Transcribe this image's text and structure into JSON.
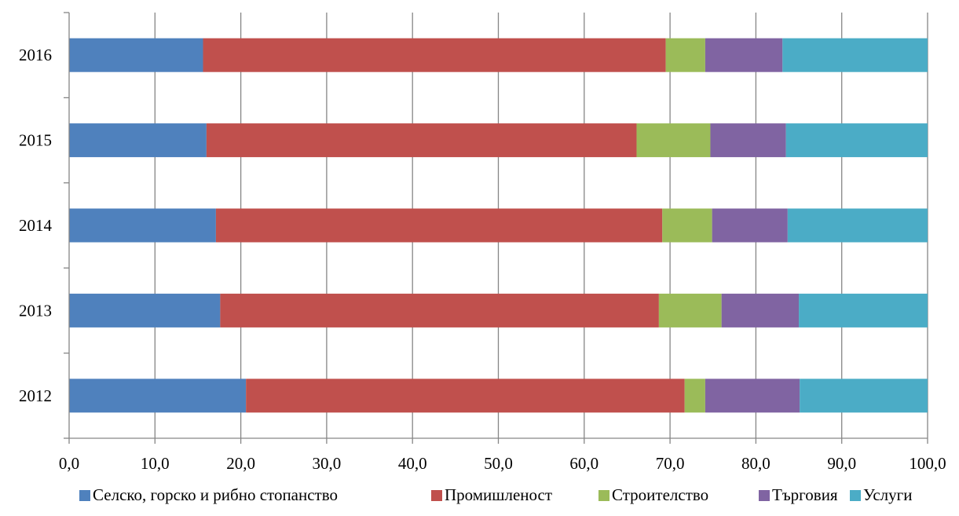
{
  "chart_data": {
    "type": "bar",
    "orientation": "horizontal",
    "stacked": true,
    "categories": [
      "2012",
      "2013",
      "2014",
      "2015",
      "2016"
    ],
    "series": [
      {
        "name": "Селско, горско и рибно стопанство",
        "color": "#4F81BD",
        "values": [
          20.6,
          17.6,
          17.1,
          16.0,
          15.6
        ]
      },
      {
        "name": "Промишленост",
        "color": "#C0504D",
        "values": [
          51.1,
          51.1,
          52.0,
          50.1,
          53.9
        ]
      },
      {
        "name": "Строителство",
        "color": "#9BBB59",
        "values": [
          2.4,
          7.3,
          5.8,
          8.6,
          4.6
        ]
      },
      {
        "name": "Търговия",
        "color": "#8064A2",
        "values": [
          11.0,
          9.0,
          8.8,
          8.8,
          9.0
        ]
      },
      {
        "name": "Услуги",
        "color": "#4BACC6",
        "values": [
          14.9,
          15.0,
          16.3,
          16.5,
          16.9
        ]
      }
    ],
    "xlim": [
      0,
      100
    ],
    "xticks": [
      "0,0",
      "10,0",
      "20,0",
      "30,0",
      "40,0",
      "50,0",
      "60,0",
      "70,0",
      "80,0",
      "90,0",
      "100,0"
    ],
    "grid": "vertical",
    "legend_position": "bottom"
  }
}
